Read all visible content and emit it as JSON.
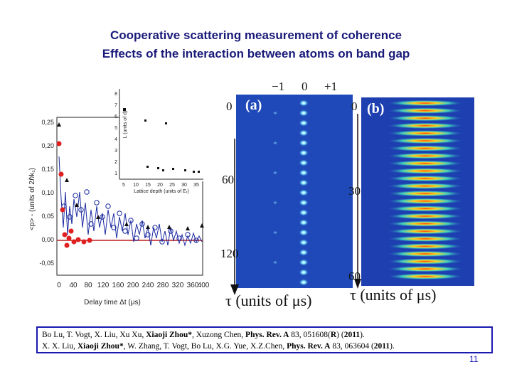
{
  "title_line1": "Cooperative scattering measurement of coherence",
  "title_line2": "Effects of the interaction between atoms on  band gap",
  "left_plot": {
    "ylabel": "<p> - (units of 2ℏk₁)",
    "xlabel": "Delay time Δt (μs)",
    "yticks": [
      "0,25",
      "0,20",
      "0,15",
      "0,10",
      "0,05",
      "0,00",
      "-0,05"
    ],
    "xticks": [
      "0",
      "40",
      "80",
      "120",
      "160",
      "200",
      "240",
      "280",
      "320",
      "360",
      "400"
    ],
    "inset": {
      "ylabel": "L (units of d)",
      "xlabel": "Lattice depth (units of Eᵣ)",
      "yticks": [
        "8",
        "7",
        "6",
        "5",
        "4",
        "3",
        "2",
        "1"
      ],
      "xticks": [
        "5",
        "10",
        "15",
        "20",
        "25",
        "30",
        "35"
      ]
    }
  },
  "panel_a": {
    "label": "(a)",
    "top_ticks": [
      "−1",
      "0",
      "+1"
    ],
    "y_ticks": [
      "0",
      "60",
      "120"
    ]
  },
  "panel_b": {
    "label": "(b)",
    "y_ticks": [
      "0",
      "30",
      "60"
    ]
  },
  "tau_label_a": "τ (units of μs)",
  "tau_label_b": "τ (units of μs)",
  "references": {
    "line1_authors": "Bo Lu, T. Vogt, X. Liu, Xu Xu, ",
    "line1_bold_author": "Xiaoji Zhou*",
    "line1_rest": ", Xuzong Chen, ",
    "line1_journal": "Phys. Rev. A",
    "line1_vol": " 83, 051608(",
    "line1_R": "R",
    "line1_mid": ") (",
    "line1_year": "2011",
    "line1_end": ").",
    "line2_authors": "X. X. Liu, ",
    "line2_bold_author": "Xiaoji Zhou*",
    "line2_rest": ", W. Zhang,  T. Vogt, Bo Lu, X.G. Yue, X.Z.Chen, ",
    "line2_journal": "Phys. Rev. A",
    "line2_vol": " 83, 063604 (",
    "line2_year": "2011",
    "line2_end": ")."
  },
  "page_number": "11"
}
